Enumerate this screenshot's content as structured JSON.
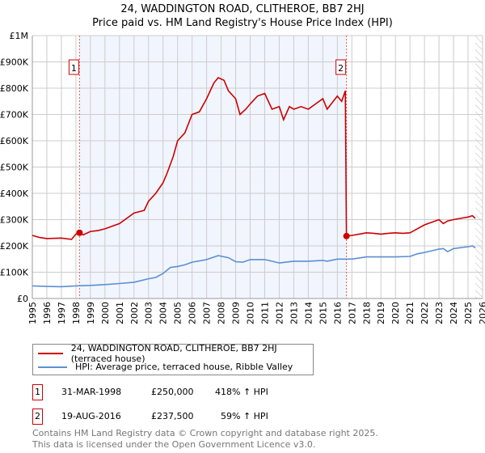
{
  "chart_data": {
    "type": "line",
    "title": "24, WADDINGTON ROAD, CLITHEROE, BB7 2HJ",
    "subtitle": "Price paid vs. HM Land Registry's House Price Index (HPI)",
    "xlim": [
      1995,
      2026
    ],
    "ylim": [
      0,
      1000000
    ],
    "x_ticks": [
      "1995",
      "1996",
      "1997",
      "1998",
      "1999",
      "2000",
      "2001",
      "2002",
      "2003",
      "2004",
      "2005",
      "2006",
      "2007",
      "2008",
      "2009",
      "2010",
      "2011",
      "2012",
      "2013",
      "2014",
      "2015",
      "2016",
      "2017",
      "2018",
      "2019",
      "2020",
      "2021",
      "2022",
      "2023",
      "2024",
      "2025",
      "2026"
    ],
    "y_ticks": [
      {
        "v": 0,
        "l": "£0"
      },
      {
        "v": 100000,
        "l": "£100K"
      },
      {
        "v": 200000,
        "l": "£200K"
      },
      {
        "v": 300000,
        "l": "£300K"
      },
      {
        "v": 400000,
        "l": "£400K"
      },
      {
        "v": 500000,
        "l": "£500K"
      },
      {
        "v": 600000,
        "l": "£600K"
      },
      {
        "v": 700000,
        "l": "£700K"
      },
      {
        "v": 800000,
        "l": "£800K"
      },
      {
        "v": 900000,
        "l": "£900K"
      },
      {
        "v": 1000000,
        "l": "£1M"
      }
    ],
    "grid": true,
    "shaded_range": [
      1998.25,
      2016.63
    ],
    "forecast_hatch_from": 2025.5,
    "series": [
      {
        "name": "24, WADDINGTON ROAD, CLITHEROE, BB7 2HJ (terraced house)",
        "color": "#cc0000",
        "x": [
          1995,
          1995.5,
          1996,
          1997,
          1997.7,
          1998,
          1998.25,
          1998.5,
          1999,
          1999.5,
          2000,
          2000.5,
          2001,
          2001.5,
          2002,
          2002.7,
          2003,
          2003.5,
          2004,
          2004.3,
          2004.7,
          2005,
          2005.5,
          2006,
          2006.5,
          2007,
          2007.5,
          2007.8,
          2008.2,
          2008.5,
          2009,
          2009.3,
          2009.7,
          2010,
          2010.5,
          2011,
          2011.5,
          2012,
          2012.3,
          2012.7,
          2013,
          2013.5,
          2014,
          2014.5,
          2015,
          2015.3,
          2016,
          2016.3,
          2016.55,
          2016.63,
          2017,
          2017.5,
          2018,
          2018.5,
          2019,
          2019.5,
          2020,
          2020.5,
          2021,
          2021.5,
          2022,
          2022.5,
          2023,
          2023.3,
          2023.6,
          2024,
          2024.5,
          2025,
          2025.3,
          2025.5
        ],
        "y": [
          240000,
          232000,
          228000,
          230000,
          225000,
          245000,
          250000,
          242000,
          255000,
          258000,
          265000,
          275000,
          285000,
          305000,
          325000,
          335000,
          370000,
          400000,
          440000,
          480000,
          540000,
          600000,
          630000,
          700000,
          710000,
          760000,
          820000,
          840000,
          830000,
          790000,
          760000,
          700000,
          720000,
          740000,
          770000,
          780000,
          720000,
          730000,
          680000,
          730000,
          720000,
          730000,
          720000,
          740000,
          760000,
          720000,
          770000,
          750000,
          790000,
          237500,
          240000,
          245000,
          250000,
          248000,
          245000,
          248000,
          250000,
          248000,
          250000,
          265000,
          280000,
          290000,
          300000,
          285000,
          295000,
          300000,
          305000,
          310000,
          315000,
          305000
        ]
      },
      {
        "name": "HPI: Average price, terraced house, Ribble Valley",
        "color": "#5b8fd4",
        "x": [
          1995,
          1996,
          1997,
          1998,
          1999,
          2000,
          2001,
          2002,
          2003,
          2003.5,
          2004,
          2004.5,
          2005,
          2005.5,
          2006,
          2007,
          2007.8,
          2008.5,
          2009,
          2009.5,
          2010,
          2011,
          2011.5,
          2012,
          2013,
          2014,
          2015,
          2015.3,
          2016,
          2016.63,
          2017,
          2018,
          2019,
          2020,
          2021,
          2021.5,
          2022,
          2023,
          2023.3,
          2023.6,
          2024,
          2025,
          2025.3,
          2025.5
        ],
        "y": [
          48000,
          46000,
          45000,
          48000,
          50000,
          53000,
          57000,
          62000,
          75000,
          80000,
          95000,
          118000,
          122000,
          128000,
          138000,
          148000,
          163000,
          155000,
          140000,
          138000,
          148000,
          148000,
          142000,
          135000,
          142000,
          142000,
          145000,
          142000,
          150000,
          150000,
          150000,
          158000,
          158000,
          158000,
          160000,
          170000,
          175000,
          188000,
          190000,
          178000,
          190000,
          197000,
          200000,
          193000
        ]
      }
    ],
    "markers": [
      {
        "label": "1",
        "x": 1998.25,
        "y": 250000
      },
      {
        "label": "2",
        "x": 2016.63,
        "y": 237500
      }
    ]
  },
  "legend": [
    {
      "label": "24, WADDINGTON ROAD, CLITHEROE, BB7 2HJ (terraced house)",
      "color": "#cc0000"
    },
    {
      "label": "HPI: Average price, terraced house, Ribble Valley",
      "color": "#5b8fd4"
    }
  ],
  "transactions": [
    {
      "num": "1",
      "date": "31-MAR-1998",
      "price": "£250,000",
      "hpi": "418% ↑ HPI"
    },
    {
      "num": "2",
      "date": "19-AUG-2016",
      "price": "£237,500",
      "hpi": "59% ↑ HPI"
    }
  ],
  "footer": [
    "Contains HM Land Registry data © Crown copyright and database right 2025.",
    "This data is licensed under the Open Government Licence v3.0."
  ]
}
